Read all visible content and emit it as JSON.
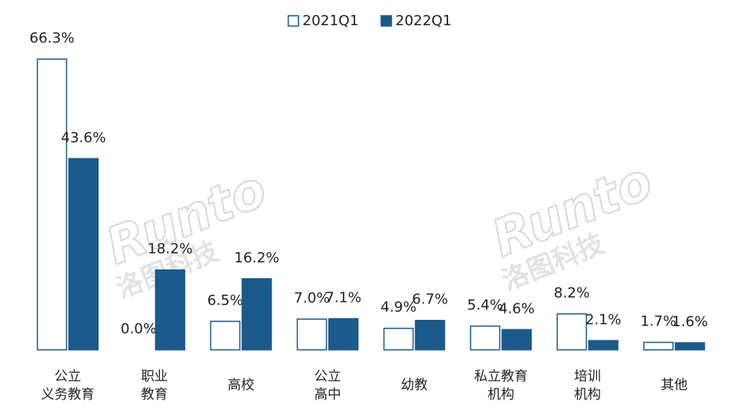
{
  "chart_data": {
    "type": "bar",
    "categories": [
      [
        "公立",
        "义务教育"
      ],
      [
        "职业",
        "教育"
      ],
      [
        "高校"
      ],
      [
        "公立",
        "高中"
      ],
      [
        "幼教"
      ],
      [
        "私立教育",
        "机构"
      ],
      [
        "培训",
        "机构"
      ],
      [
        "其他"
      ]
    ],
    "series": [
      {
        "name": "2021Q1",
        "color": "#ffffff",
        "stroke": "#1b5a8a",
        "values": [
          66.3,
          0.0,
          6.5,
          7.0,
          4.9,
          5.4,
          8.2,
          1.7
        ],
        "value_labels": [
          "66.3%",
          "0.0%",
          "6.5%",
          "7.0%",
          "4.9%",
          "5.4%",
          "8.2%",
          "1.7%"
        ]
      },
      {
        "name": "2022Q1",
        "color": "#1b5a8a",
        "stroke": "#1b5a8a",
        "values": [
          43.6,
          18.2,
          16.2,
          7.1,
          6.7,
          4.6,
          2.1,
          1.6
        ],
        "value_labels": [
          "43.6%",
          "18.2%",
          "16.2%",
          "7.1%",
          "6.7%",
          "4.6%",
          "2.1%",
          "1.6%"
        ]
      }
    ],
    "watermark": "Runto",
    "watermark_sub": "洛图科技"
  }
}
